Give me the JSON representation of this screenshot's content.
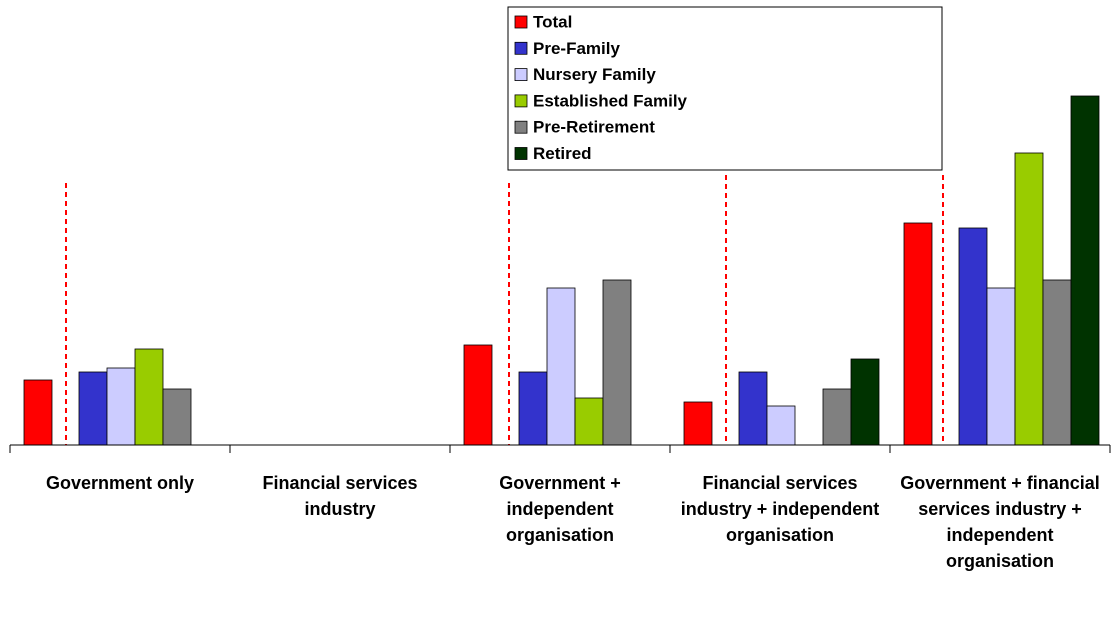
{
  "chart_data": {
    "type": "bar",
    "categories": [
      "Government only",
      "Financial services industry",
      "Government + independent organisation",
      "Financial services industry + independent organisation",
      "Government + financial services industry + independent organisation"
    ],
    "series": [
      {
        "name": "Total",
        "color": "#ff0000",
        "values": [
          65,
          null,
          100,
          43,
          222
        ]
      },
      {
        "name": "Pre-Family",
        "color": "#3333cc",
        "values": [
          73,
          null,
          73,
          73,
          217
        ]
      },
      {
        "name": "Nursery Family",
        "color": "#ccccff",
        "values": [
          77,
          null,
          157,
          39,
          157
        ]
      },
      {
        "name": "Established Family",
        "color": "#99cc00",
        "values": [
          96,
          null,
          47,
          null,
          292
        ]
      },
      {
        "name": "Pre-Retirement",
        "color": "#808080",
        "values": [
          56,
          null,
          165,
          56,
          165
        ]
      },
      {
        "name": "Retired",
        "color": "#003300",
        "values": [
          null,
          null,
          null,
          86,
          349
        ]
      }
    ],
    "ylim": [
      0,
      445
    ]
  }
}
